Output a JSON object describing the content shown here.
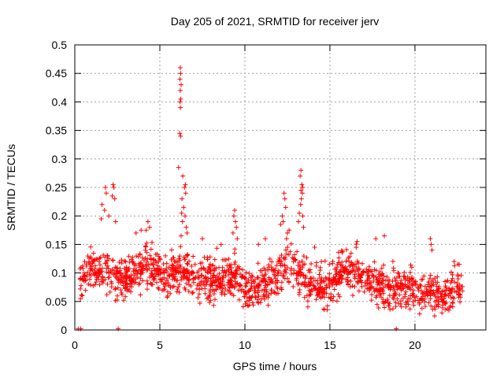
{
  "chart_data": {
    "type": "scatter",
    "title": "Day 205 of 2021, SRMTID for receiver jerv",
    "xlabel": "GPS time / hours",
    "ylabel": "SRMTID / TECUs",
    "xlim": [
      0,
      24.17
    ],
    "ylim": [
      0,
      0.5
    ],
    "x_ticks": [
      0,
      5,
      10,
      15,
      20
    ],
    "y_ticks": [
      0,
      0.05,
      0.1,
      0.15,
      0.2,
      0.25,
      0.3,
      0.35,
      0.4,
      0.45,
      0.5
    ],
    "grid": true,
    "marker": "+",
    "color": "#ff0000",
    "trend": [
      [
        0.3,
        0.09
      ],
      [
        0.6,
        0.1
      ],
      [
        1.0,
        0.11
      ],
      [
        1.5,
        0.105
      ],
      [
        2.0,
        0.1
      ],
      [
        2.5,
        0.09
      ],
      [
        3.0,
        0.085
      ],
      [
        3.5,
        0.1
      ],
      [
        4.0,
        0.115
      ],
      [
        4.5,
        0.11
      ],
      [
        5.0,
        0.1
      ],
      [
        5.5,
        0.095
      ],
      [
        6.0,
        0.1
      ],
      [
        6.5,
        0.105
      ],
      [
        7.0,
        0.09
      ],
      [
        7.5,
        0.085
      ],
      [
        8.0,
        0.09
      ],
      [
        8.5,
        0.09
      ],
      [
        9.0,
        0.095
      ],
      [
        9.5,
        0.1
      ],
      [
        10.0,
        0.075
      ],
      [
        10.5,
        0.07
      ],
      [
        11.0,
        0.075
      ],
      [
        11.5,
        0.085
      ],
      [
        12.0,
        0.1
      ],
      [
        12.5,
        0.115
      ],
      [
        13.0,
        0.11
      ],
      [
        13.5,
        0.09
      ],
      [
        14.0,
        0.085
      ],
      [
        14.5,
        0.07
      ],
      [
        15.0,
        0.075
      ],
      [
        15.5,
        0.1
      ],
      [
        16.0,
        0.105
      ],
      [
        16.5,
        0.1
      ],
      [
        17.0,
        0.095
      ],
      [
        17.5,
        0.085
      ],
      [
        18.0,
        0.075
      ],
      [
        18.5,
        0.07
      ],
      [
        19.0,
        0.075
      ],
      [
        19.5,
        0.07
      ],
      [
        20.0,
        0.075
      ],
      [
        20.5,
        0.065
      ],
      [
        21.0,
        0.065
      ],
      [
        21.5,
        0.06
      ],
      [
        22.0,
        0.065
      ],
      [
        22.5,
        0.075
      ],
      [
        22.8,
        0.075
      ]
    ],
    "spread": 0.028,
    "cluster_count": 1600,
    "points_fixed": [
      [
        6.2,
        0.46
      ],
      [
        6.22,
        0.45
      ],
      [
        6.18,
        0.44
      ],
      [
        6.25,
        0.43
      ],
      [
        6.2,
        0.42
      ],
      [
        6.23,
        0.405
      ],
      [
        6.19,
        0.4
      ],
      [
        6.21,
        0.39
      ],
      [
        6.17,
        0.345
      ],
      [
        6.22,
        0.34
      ],
      [
        6.1,
        0.285
      ],
      [
        6.35,
        0.27
      ],
      [
        6.5,
        0.255
      ],
      [
        6.45,
        0.25
      ],
      [
        6.52,
        0.24
      ],
      [
        6.3,
        0.23
      ],
      [
        6.4,
        0.215
      ],
      [
        6.28,
        0.205
      ],
      [
        6.48,
        0.2
      ],
      [
        6.33,
        0.19
      ],
      [
        6.55,
        0.18
      ],
      [
        6.6,
        0.17
      ],
      [
        6.25,
        0.165
      ],
      [
        13.3,
        0.28
      ],
      [
        13.25,
        0.27
      ],
      [
        13.35,
        0.255
      ],
      [
        13.4,
        0.25
      ],
      [
        13.3,
        0.245
      ],
      [
        13.38,
        0.24
      ],
      [
        13.32,
        0.23
      ],
      [
        13.28,
        0.22
      ],
      [
        13.2,
        0.205
      ],
      [
        13.4,
        0.2
      ],
      [
        13.15,
        0.19
      ],
      [
        13.45,
        0.18
      ],
      [
        12.3,
        0.24
      ],
      [
        12.35,
        0.23
      ],
      [
        12.4,
        0.215
      ],
      [
        12.2,
        0.2
      ],
      [
        12.25,
        0.19
      ],
      [
        12.1,
        0.185
      ],
      [
        12.5,
        0.17
      ],
      [
        12.6,
        0.175
      ],
      [
        12.45,
        0.16
      ],
      [
        2.25,
        0.255
      ],
      [
        2.3,
        0.25
      ],
      [
        2.2,
        0.235
      ],
      [
        2.35,
        0.23
      ],
      [
        1.8,
        0.25
      ],
      [
        1.85,
        0.24
      ],
      [
        1.6,
        0.22
      ],
      [
        1.75,
        0.21
      ],
      [
        2.0,
        0.2
      ],
      [
        1.55,
        0.195
      ],
      [
        2.4,
        0.19
      ],
      [
        9.4,
        0.21
      ],
      [
        9.35,
        0.2
      ],
      [
        9.45,
        0.19
      ],
      [
        9.5,
        0.18
      ],
      [
        9.3,
        0.17
      ],
      [
        9.55,
        0.16
      ],
      [
        4.3,
        0.19
      ],
      [
        4.4,
        0.18
      ],
      [
        4.2,
        0.175
      ],
      [
        3.9,
        0.175
      ],
      [
        3.6,
        0.17
      ],
      [
        20.9,
        0.16
      ],
      [
        20.95,
        0.15
      ],
      [
        21.0,
        0.14
      ],
      [
        18.2,
        0.165
      ],
      [
        17.7,
        0.16
      ],
      [
        16.6,
        0.155
      ],
      [
        14.1,
        0.145
      ],
      [
        14.5,
        0.12
      ],
      [
        10.8,
        0.15
      ],
      [
        11.2,
        0.16
      ],
      [
        8.6,
        0.15
      ],
      [
        7.5,
        0.16
      ],
      [
        22.6,
        0.115
      ],
      [
        22.3,
        0.12
      ],
      [
        0.2,
        0.002
      ],
      [
        0.35,
        0.002
      ],
      [
        2.55,
        0.002
      ],
      [
        18.9,
        0.002
      ]
    ]
  }
}
